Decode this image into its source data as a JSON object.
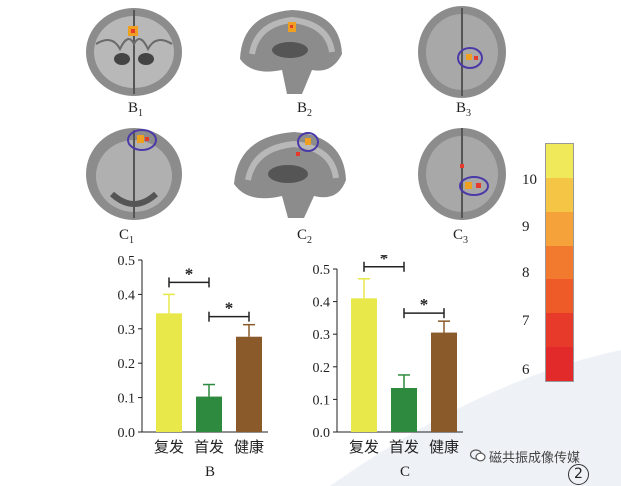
{
  "panels": {
    "row1": [
      "B",
      "B",
      "B"
    ],
    "row1_sub": [
      "1",
      "2",
      "3"
    ],
    "row2": [
      "C",
      "C",
      "C"
    ],
    "row2_sub": [
      "1",
      "2",
      "3"
    ]
  },
  "colorbar": {
    "labels": [
      "10",
      "9",
      "8",
      "7",
      "6"
    ],
    "colors": [
      "#f0ea5a",
      "#f5c646",
      "#f5a23a",
      "#f27a2e",
      "#ee5a28",
      "#e83a2a",
      "#e22a2a"
    ]
  },
  "chart_data": [
    {
      "type": "bar",
      "xlabel": "B",
      "categories": [
        "复发",
        "首发",
        "健康"
      ],
      "values": [
        0.345,
        0.103,
        0.277
      ],
      "errors": [
        0.055,
        0.035,
        0.035
      ],
      "colors": [
        "#e8e84a",
        "#2e8a3e",
        "#8b5a2b"
      ],
      "ylim": [
        0,
        0.5
      ],
      "yticks": [
        "0.0",
        "0.1",
        "0.2",
        "0.3",
        "0.4",
        "0.5"
      ],
      "significance": [
        {
          "from": 0,
          "to": 1,
          "label": "*"
        },
        {
          "from": 1,
          "to": 2,
          "label": "*"
        }
      ]
    },
    {
      "type": "bar",
      "xlabel": "C",
      "categories": [
        "复发",
        "首发",
        "健康"
      ],
      "values": [
        0.41,
        0.135,
        0.305
      ],
      "errors": [
        0.06,
        0.04,
        0.035
      ],
      "colors": [
        "#e8e84a",
        "#2e8a3e",
        "#8b5a2b"
      ],
      "ylim": [
        0,
        0.5
      ],
      "yticks": [
        "0.0",
        "0.1",
        "0.2",
        "0.3",
        "0.4",
        "0.5"
      ],
      "significance": [
        {
          "from": 0,
          "to": 1,
          "label": "*"
        },
        {
          "from": 1,
          "to": 2,
          "label": "*"
        }
      ]
    }
  ],
  "watermark": {
    "text": "磁共振成像传媒"
  },
  "page_number": "2"
}
